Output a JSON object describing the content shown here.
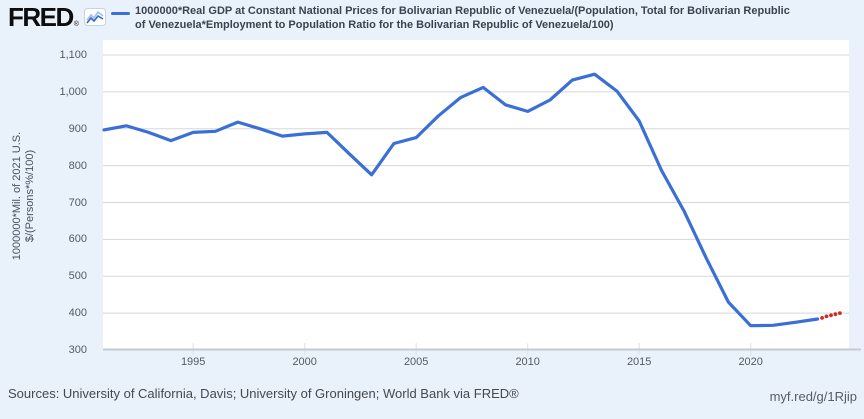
{
  "header": {
    "logo_text": "FRED",
    "logo_registered": "®",
    "legend": {
      "series_label_lines": [
        "1000000*Real GDP at Constant National Prices for Bolivarian Republic of Venezuela/(Population, Total for Bolivarian Republic",
        "of Venezuela*Employment to Population Ratio for the Bolivarian Republic of Venezuela/100)"
      ]
    }
  },
  "chart_data": {
    "type": "line",
    "title": "1000000*Real GDP at Constant National Prices for Bolivarian Republic of Venezuela/(Population, Total for Bolivarian Republic of Venezuela*Employment to Population Ratio for the Bolivarian Republic of Venezuela/100)",
    "ylabel": "1000000*Mil. of 2021 U.S. $/(Persons*%/100)",
    "ylabel_lines": [
      "1000000*Mil. of 2021 U.S.",
      "$/(Persons*%/100)"
    ],
    "xlim": [
      1990.5,
      2024.3
    ],
    "ylim": [
      300,
      1100
    ],
    "grid": true,
    "legend_position": "top",
    "y_tick_labels": [
      "1,100",
      "1,000",
      "900",
      "800",
      "700",
      "600",
      "500",
      "400",
      "300"
    ],
    "y_tick_values": [
      1100,
      1000,
      900,
      800,
      700,
      600,
      500,
      400,
      300
    ],
    "x_tick_labels": [
      "1995",
      "2000",
      "2005",
      "2010",
      "2015",
      "2020"
    ],
    "x_tick_values": [
      1995,
      2000,
      2005,
      2010,
      2015,
      2020
    ],
    "series": [
      {
        "name": "1000000*Real GDP at Constant National Prices for Bolivarian Republic of Venezuela/(Population, Total for Bolivarian Republic of Venezuela*Employment to Population Ratio for the Bolivarian Republic of Venezuela/100)",
        "color": "#3a6fd8",
        "style": "solid",
        "x": [
          1991,
          1992,
          1993,
          1994,
          1995,
          1996,
          1997,
          1998,
          1999,
          2000,
          2001,
          2002,
          2003,
          2004,
          2005,
          2006,
          2007,
          2008,
          2009,
          2010,
          2011,
          2012,
          2013,
          2014,
          2015,
          2016,
          2017,
          2018,
          2019,
          2020,
          2021,
          2022,
          2023
        ],
        "values": [
          897,
          908,
          890,
          868,
          890,
          893,
          918,
          900,
          880,
          886,
          890,
          832,
          775,
          860,
          876,
          935,
          985,
          1012,
          965,
          947,
          978,
          1032,
          1048,
          1002,
          921,
          787,
          678,
          550,
          430,
          366,
          367,
          375,
          384
        ]
      },
      {
        "name": "latest-estimate-dotted",
        "color": "#cf2b24",
        "style": "dotted",
        "x": [
          2023.2,
          2023.4,
          2023.6,
          2023.8,
          2024.0
        ],
        "values": [
          387,
          391,
          394,
          397,
          400
        ]
      }
    ]
  },
  "footer": {
    "sources": "Sources: University of California, Davis; University of Groningen; World Bank via FRED®",
    "permalink": "myf.red/g/1Rjip"
  },
  "colors": {
    "accent_blue": "#3a6fd8",
    "projection_red": "#cf2b24",
    "background": "#e9f1fa",
    "plot_background": "#ffffff"
  }
}
